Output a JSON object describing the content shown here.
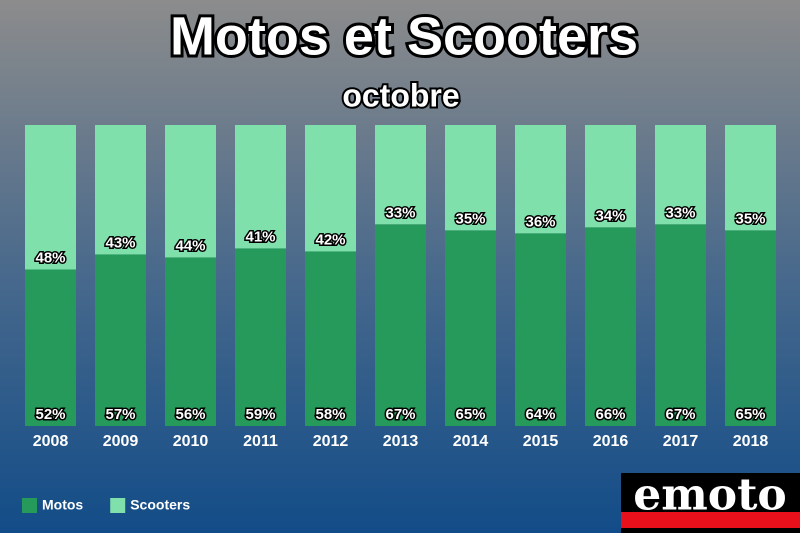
{
  "chart_data": {
    "type": "stacked-bar",
    "title": "Motos et Scooters",
    "subtitle": "octobre",
    "categories": [
      "2008",
      "2009",
      "2010",
      "2011",
      "2012",
      "2013",
      "2014",
      "2015",
      "2016",
      "2017",
      "2018"
    ],
    "series": [
      {
        "name": "Motos",
        "color": "#259a5a",
        "values": [
          52,
          57,
          56,
          59,
          58,
          67,
          65,
          64,
          66,
          67,
          65
        ],
        "value_labels": [
          "52%",
          "57%",
          "56%",
          "59%",
          "58%",
          "67%",
          "65%",
          "64%",
          "66%",
          "67%",
          "65%"
        ]
      },
      {
        "name": "Scooters",
        "color": "#80e0ac",
        "values": [
          48,
          43,
          44,
          41,
          42,
          33,
          35,
          36,
          34,
          33,
          35
        ],
        "value_labels": [
          "48%",
          "43%",
          "44%",
          "41%",
          "42%",
          "33%",
          "35%",
          "36%",
          "34%",
          "33%",
          "35%"
        ]
      }
    ],
    "legend": "bottom-left"
  },
  "logo": "emoto"
}
